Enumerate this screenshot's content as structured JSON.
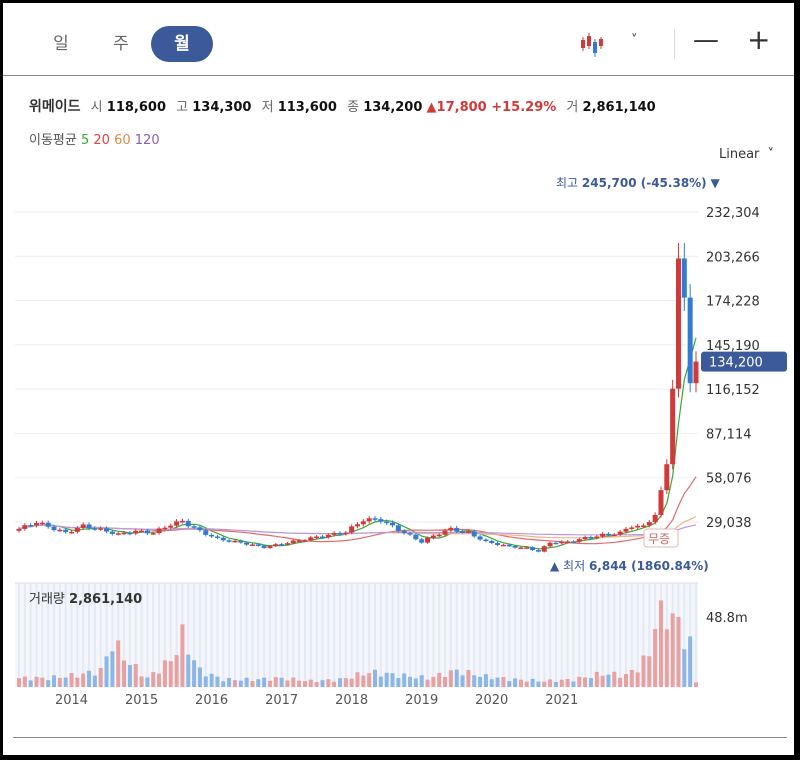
{
  "tabs": [
    {
      "label": "일"
    },
    {
      "label": "주"
    },
    {
      "label": "월"
    }
  ],
  "toolbar": {
    "chevron": "˅",
    "minus": "—",
    "plus": "+"
  },
  "stock": {
    "name": "위메이드",
    "open_label": "시",
    "open": "118,600",
    "high_label": "고",
    "high": "134,300",
    "low_label": "저",
    "low": "113,600",
    "close_label": "종",
    "close": "134,200",
    "change": "▲17,800 +15.29%",
    "volume_label": "거",
    "volume": "2,861,140"
  },
  "ma_legend": {
    "title": "이동평균",
    "periods": [
      "5",
      "20",
      "60",
      "120"
    ],
    "colors": [
      "#3aa83a",
      "#d44",
      "#e08a4a",
      "#8c5bc2"
    ]
  },
  "scale_label": "Linear",
  "colors": {
    "up": "#d23a3a",
    "down": "#2f7bd6",
    "up_vol": "#e8a0a0",
    "down_vol": "#8ab6e8",
    "accent": "#3c5a9a"
  },
  "chart_data": {
    "type": "candlestick",
    "interval": "monthly",
    "y_ticks": [
      29038,
      58076,
      87114,
      116152,
      145190,
      174228,
      203266,
      232304
    ],
    "y_tick_labels": [
      "29,038",
      "58,076",
      "87,114",
      "116,152",
      "145,190",
      "174,228",
      "203,266",
      "232,304"
    ],
    "current_price_label": "134,200",
    "current_price": 134200,
    "max_label": "최고",
    "max_value": "245,700 (-45.38%)",
    "min_label": "최저",
    "min_value": "6,844 (1860.84%)",
    "annotation": "무증",
    "x_ticks": [
      "2014",
      "2015",
      "2016",
      "2017",
      "2018",
      "2019",
      "2020",
      "2021"
    ],
    "volume_label": "거래량",
    "volume_value": "2,861,140",
    "volume_axis": "48.8m",
    "volume_max": 48800000,
    "anchors": [
      [
        0,
        24500
      ],
      [
        3,
        29000
      ],
      [
        5,
        26000
      ],
      [
        8,
        22000
      ],
      [
        11,
        26500
      ],
      [
        14,
        24000
      ],
      [
        17,
        21000
      ],
      [
        20,
        23000
      ],
      [
        23,
        22000
      ],
      [
        26,
        27500
      ],
      [
        28,
        29500
      ],
      [
        31,
        23000
      ],
      [
        34,
        18000
      ],
      [
        38,
        15500
      ],
      [
        42,
        12500
      ],
      [
        46,
        15500
      ],
      [
        50,
        18500
      ],
      [
        53,
        20500
      ],
      [
        56,
        22500
      ],
      [
        59,
        30500
      ],
      [
        62,
        30500
      ],
      [
        64,
        26000
      ],
      [
        67,
        20000
      ],
      [
        69,
        16000
      ],
      [
        71,
        20000
      ],
      [
        74,
        24500
      ],
      [
        77,
        22000
      ],
      [
        80,
        16000
      ],
      [
        84,
        13000
      ],
      [
        87,
        12000
      ],
      [
        89,
        9800
      ],
      [
        91,
        15500
      ],
      [
        94,
        16000
      ],
      [
        97,
        18500
      ],
      [
        100,
        20500
      ],
      [
        103,
        22000
      ],
      [
        105,
        26500
      ],
      [
        107,
        26000
      ],
      [
        109,
        34000
      ],
      [
        110,
        48000
      ],
      [
        111,
        68000
      ],
      [
        112,
        120000
      ],
      [
        113,
        195000
      ],
      [
        114,
        175000
      ],
      [
        115,
        125000
      ],
      [
        116,
        134200
      ]
    ],
    "volume_anchors": [
      [
        0,
        6
      ],
      [
        5,
        6
      ],
      [
        10,
        8
      ],
      [
        14,
        11
      ],
      [
        16,
        30
      ],
      [
        19,
        16
      ],
      [
        22,
        6
      ],
      [
        26,
        18
      ],
      [
        28,
        34
      ],
      [
        31,
        11
      ],
      [
        35,
        5
      ],
      [
        40,
        5
      ],
      [
        45,
        6
      ],
      [
        50,
        4
      ],
      [
        55,
        5
      ],
      [
        60,
        10
      ],
      [
        65,
        8
      ],
      [
        70,
        6
      ],
      [
        75,
        11
      ],
      [
        80,
        7
      ],
      [
        85,
        5
      ],
      [
        90,
        4
      ],
      [
        95,
        5
      ],
      [
        100,
        9
      ],
      [
        104,
        8
      ],
      [
        106,
        13
      ],
      [
        108,
        22
      ],
      [
        109,
        46
      ],
      [
        111,
        48
      ],
      [
        112,
        50
      ],
      [
        113,
        40
      ],
      [
        114,
        34
      ],
      [
        115,
        30
      ],
      [
        116,
        3
      ]
    ]
  }
}
